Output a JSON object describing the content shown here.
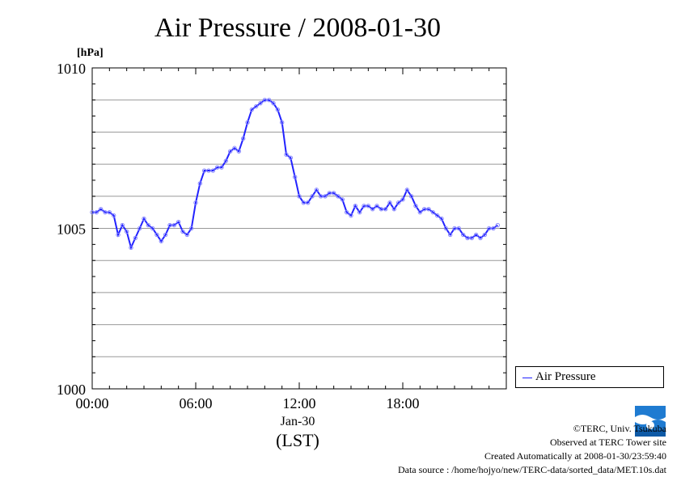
{
  "chart_data": {
    "type": "line",
    "title": "Air Pressure / 2008-01-30",
    "ylabel": "[hPa]",
    "xlabel": "Jan-30",
    "xlabel_sub": "(LST)",
    "ylim": [
      1000,
      1010
    ],
    "xlim_hours": [
      0,
      24
    ],
    "y_ticks": [
      1000,
      1005,
      1010
    ],
    "x_ticks": [
      {
        "hour": 0,
        "label": "00:00"
      },
      {
        "hour": 6,
        "label": "06:00"
      },
      {
        "hour": 12,
        "label": "12:00"
      },
      {
        "hour": 18,
        "label": "18:00"
      }
    ],
    "grid": true,
    "legend_position": "bottom-right outside",
    "series": [
      {
        "name": "Air Pressure",
        "color": "#2222ff",
        "x_hours": [
          0.0,
          0.25,
          0.5,
          0.75,
          1.0,
          1.25,
          1.5,
          1.75,
          2.0,
          2.25,
          2.5,
          2.75,
          3.0,
          3.25,
          3.5,
          3.75,
          4.0,
          4.25,
          4.5,
          4.75,
          5.0,
          5.25,
          5.5,
          5.75,
          6.0,
          6.25,
          6.5,
          6.75,
          7.0,
          7.25,
          7.5,
          7.75,
          8.0,
          8.25,
          8.5,
          8.75,
          9.0,
          9.25,
          9.5,
          9.75,
          10.0,
          10.25,
          10.5,
          10.75,
          11.0,
          11.25,
          11.5,
          11.75,
          12.0,
          12.25,
          12.5,
          12.75,
          13.0,
          13.25,
          13.5,
          13.75,
          14.0,
          14.25,
          14.5,
          14.75,
          15.0,
          15.25,
          15.5,
          15.75,
          16.0,
          16.25,
          16.5,
          16.75,
          17.0,
          17.25,
          17.5,
          17.75,
          18.0,
          18.25,
          18.5,
          18.75,
          19.0,
          19.25,
          19.5,
          19.75,
          20.0,
          20.25,
          20.5,
          20.75,
          21.0,
          21.25,
          21.5,
          21.75,
          22.0,
          22.25,
          22.5,
          22.75,
          23.0,
          23.25,
          23.5
        ],
        "values": [
          1005.5,
          1005.5,
          1005.6,
          1005.5,
          1005.5,
          1005.4,
          1004.8,
          1005.1,
          1004.9,
          1004.4,
          1004.7,
          1005.0,
          1005.3,
          1005.1,
          1005.0,
          1004.8,
          1004.6,
          1004.8,
          1005.1,
          1005.1,
          1005.2,
          1004.9,
          1004.8,
          1005.0,
          1005.8,
          1006.4,
          1006.8,
          1006.8,
          1006.8,
          1006.9,
          1006.9,
          1007.1,
          1007.4,
          1007.5,
          1007.4,
          1007.8,
          1008.3,
          1008.7,
          1008.8,
          1008.9,
          1009.0,
          1009.0,
          1008.9,
          1008.7,
          1008.3,
          1007.3,
          1007.2,
          1006.6,
          1006.0,
          1005.8,
          1005.8,
          1006.0,
          1006.2,
          1006.0,
          1006.0,
          1006.1,
          1006.1,
          1006.0,
          1005.9,
          1005.5,
          1005.4,
          1005.7,
          1005.5,
          1005.7,
          1005.7,
          1005.6,
          1005.7,
          1005.6,
          1005.6,
          1005.8,
          1005.6,
          1005.8,
          1005.9,
          1006.2,
          1006.0,
          1005.7,
          1005.5,
          1005.6,
          1005.6,
          1005.5,
          1005.4,
          1005.3,
          1005.0,
          1004.8,
          1005.0,
          1005.0,
          1004.8,
          1004.7,
          1004.7,
          1004.8,
          1004.7,
          1004.8,
          1005.0,
          1005.0,
          1005.1
        ]
      }
    ]
  },
  "legend": {
    "label": "Air Pressure"
  },
  "footer": {
    "copyright": "©TERC, Univ. Tsukuba",
    "observed": "Observed at TERC Tower site",
    "created": "Created Automatically at 2008-01-30/23:59:40",
    "source": "Data source : /home/hojyo/new/TERC-data/sorted_data/MET.10s.dat"
  },
  "logo": {
    "text": "TERC",
    "color": "#1f7bd1"
  }
}
